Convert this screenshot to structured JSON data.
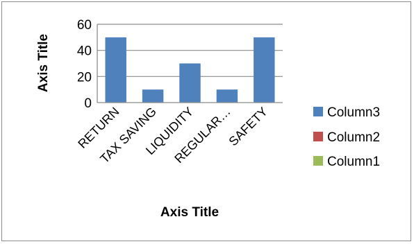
{
  "chart_data": {
    "type": "bar",
    "title": "",
    "xlabel": "Axis Title",
    "ylabel": "Axis Title",
    "categories": [
      "RETURN",
      "TAX SAVING",
      "LIQUIDITY",
      "REGULAR…",
      "SAFETY"
    ],
    "series": [
      {
        "name": "Column1",
        "color": "#9bbb59",
        "values": [
          null,
          null,
          null,
          null,
          null
        ]
      },
      {
        "name": "Column2",
        "color": "#c0504d",
        "values": [
          null,
          null,
          null,
          null,
          null
        ]
      },
      {
        "name": "Column3",
        "color": "#4f81bd",
        "values": [
          50,
          10,
          30,
          10,
          50
        ]
      }
    ],
    "ylim": [
      0,
      60
    ],
    "yticks": [
      0,
      20,
      40,
      60
    ],
    "grid": true,
    "legend_position": "right"
  }
}
